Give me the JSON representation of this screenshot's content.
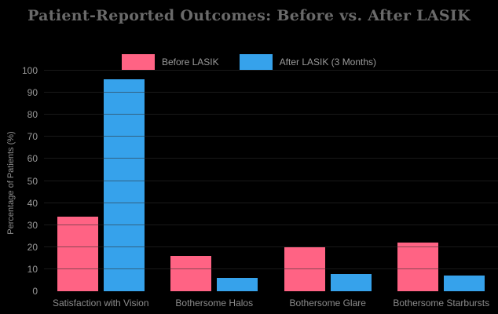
{
  "chart_data": {
    "type": "bar",
    "title": "Patient-Reported Outcomes: Before vs. After LASIK",
    "ylabel": "Percentage of Patients (%)",
    "xlabel": "",
    "categories": [
      "Satisfaction with Vision",
      "Bothersome Halos",
      "Bothersome Glare",
      "Bothersome Starbursts"
    ],
    "series": [
      {
        "name": "Before LASIK",
        "color": "#FF6384",
        "values": [
          34,
          16,
          20,
          22
        ]
      },
      {
        "name": "After LASIK (3 Months)",
        "color": "#36A2EB",
        "values": [
          96,
          6,
          8,
          7
        ]
      }
    ],
    "ylim": [
      0,
      100
    ],
    "yticks": [
      0,
      10,
      20,
      30,
      40,
      50,
      60,
      70,
      80,
      90,
      100
    ],
    "grid": true,
    "legend_position": "top-center",
    "background_color": "#000000",
    "text_color": "#999999"
  }
}
